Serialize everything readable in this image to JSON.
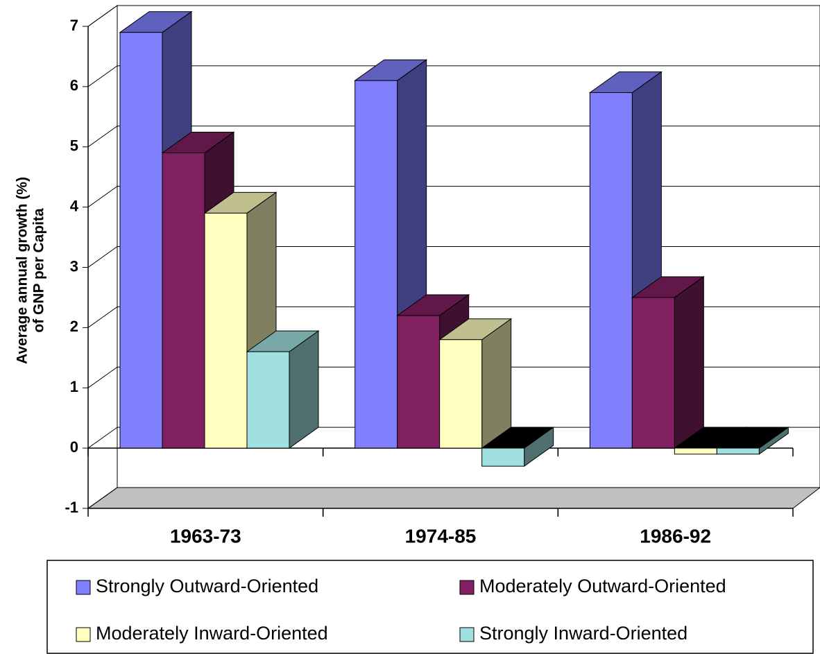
{
  "chart_data": {
    "type": "bar3d",
    "y_label": [
      "Average annual growth (%)",
      "of GNP per Capita"
    ],
    "categories": [
      "1963-73",
      "1974-85",
      "1986-92"
    ],
    "series": [
      {
        "name": "Strongly Outward-Oriented",
        "color": "#8080ff",
        "values": [
          6.9,
          6.1,
          5.9
        ]
      },
      {
        "name": "Moderately Outward-Oriented",
        "color": "#802060",
        "values": [
          4.9,
          2.2,
          2.5
        ]
      },
      {
        "name": "Moderately Inward-Oriented",
        "color": "#ffffc0",
        "values": [
          3.9,
          1.8,
          -0.1
        ]
      },
      {
        "name": "Strongly Inward-Oriented",
        "color": "#a0e0e0",
        "values": [
          1.6,
          -0.3,
          -0.1
        ]
      }
    ],
    "ylim": [
      -1,
      7
    ],
    "yticks": [
      -1,
      0,
      1,
      2,
      3,
      4,
      5,
      6,
      7
    ],
    "grid": true
  }
}
